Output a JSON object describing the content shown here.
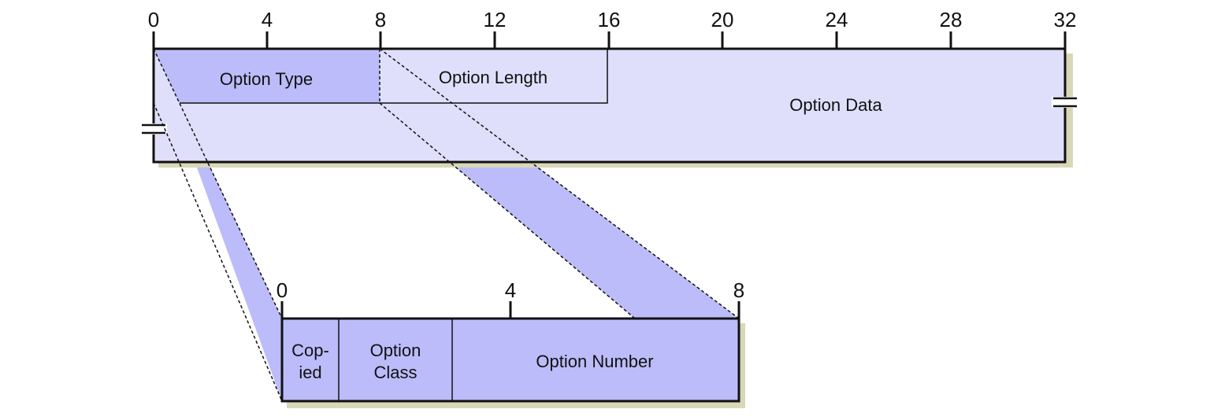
{
  "colors": {
    "background": "#ffffff",
    "option_data_fill": "#dfdffc",
    "highlight_fill": "#bcbcfb",
    "shadow": "#d8d8b8",
    "stroke": "#111111"
  },
  "top_ruler": {
    "ticks": [
      "0",
      "4",
      "8",
      "12",
      "16",
      "20",
      "24",
      "28",
      "32"
    ]
  },
  "top_fields": {
    "option_type": "Option Type",
    "option_length": "Option Length",
    "option_data": "Option Data"
  },
  "bottom_ruler": {
    "ticks": [
      "0",
      "4",
      "8"
    ]
  },
  "bottom_fields": {
    "copied_line1": "Cop-",
    "copied_line2": "ied",
    "option_class_line1": "Option",
    "option_class_line2": "Class",
    "option_number": "Option Number"
  }
}
